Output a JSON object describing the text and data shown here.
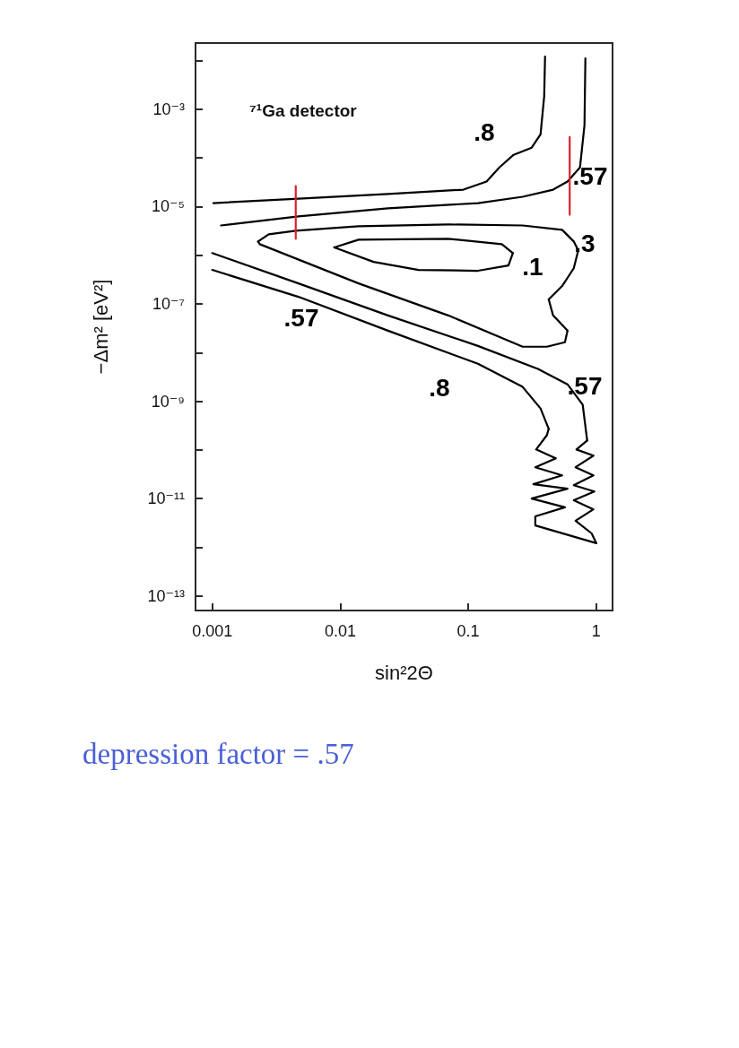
{
  "chart_data": {
    "type": "line",
    "log": "xy",
    "xlabel": "sin²2Θ",
    "ylabel": "−Δm² [eV²]",
    "xlim": [
      0.00074,
      1.34
    ],
    "xticks": [
      0.001,
      0.01,
      0.1,
      1
    ],
    "ylim": [
      5e-14,
      0.023
    ],
    "yticks": [
      {
        "value": 0.01,
        "label": null
      },
      {
        "value": 0.001,
        "label": "10⁻³"
      },
      {
        "value": 0.0001,
        "label": null
      },
      {
        "value": 1e-05,
        "label": "10⁻⁵"
      },
      {
        "value": 1e-06,
        "label": null
      },
      {
        "value": 1e-07,
        "label": "10⁻⁷"
      },
      {
        "value": 1e-08,
        "label": null
      },
      {
        "value": 1e-09,
        "label": "10⁻⁹"
      },
      {
        "value": 1e-10,
        "label": null
      },
      {
        "value": 1e-11,
        "label": "10⁻¹¹"
      },
      {
        "value": 1e-12,
        "label": null
      },
      {
        "value": 1e-13,
        "label": "10⁻¹³"
      }
    ],
    "series": [
      {
        "color": "#000000",
        "x": [
          0.00102,
          0.00471,
          0.0236,
          0.0916,
          0.139,
          0.175,
          0.226,
          0.313,
          0.367,
          0.392,
          0.398
        ],
        "values": [
          1.18e-05,
          1.46e-05,
          1.81e-05,
          2.23e-05,
          3.27e-05,
          6.4e-05,
          0.000116,
          0.000163,
          0.000306,
          0.00188,
          0.0121
        ]
      },
      {
        "color": "#000000",
        "x": [
          0.00117,
          0.00471,
          0.0236,
          0.119,
          0.266,
          0.46,
          0.596,
          0.746,
          0.809,
          0.822
        ],
        "values": [
          4.1e-06,
          6.3e-06,
          9.2e-06,
          1.18e-05,
          1.59e-05,
          2.23e-05,
          3.27e-05,
          6.4e-05,
          0.00047,
          0.0111
        ]
      },
      {
        "color": "#000000",
        "x": [
          0.00228,
          0.00276,
          0.00449,
          0.0139,
          0.0697,
          0.266,
          0.541,
          0.667,
          0.723
        ],
        "values": [
          1.92e-06,
          2.7e-06,
          3.2e-06,
          3.95e-06,
          4.3e-06,
          4.1e-06,
          3.33e-06,
          1.92e-06,
          1.26e-06
        ]
      },
      {
        "color": "#000000",
        "x": [
          0.425,
          0.541,
          0.667,
          0.723
        ],
        "values": [
          1.24e-07,
          2.33e-07,
          5.4e-07,
          1.26e-06
        ]
      },
      {
        "color": "#000000",
        "x": [
          0.425,
          0.46,
          0.596
        ],
        "values": [
          1.24e-07,
          5.8e-08,
          2.82e-08
        ]
      },
      {
        "color": "#000000",
        "x": [
          0.00228,
          0.00235,
          0.0139,
          0.0697,
          0.266,
          0.411,
          0.569,
          0.596
        ],
        "values": [
          1.92e-06,
          1.69e-06,
          2.64e-07,
          5.8e-08,
          1.32e-08,
          1.32e-08,
          1.63e-08,
          2.82e-08
        ]
      },
      {
        "color": "#000000",
        "x": [
          0.00898,
          0.0139,
          0.0697,
          0.183,
          0.223
        ],
        "values": [
          1.45e-06,
          2.09e-06,
          2.18e-06,
          1.69e-06,
          1.11e-06
        ]
      },
      {
        "color": "#000000",
        "x": [
          0.00898,
          0.0182,
          0.0409,
          0.119,
          0.206,
          0.223
        ],
        "values": [
          1.45e-06,
          7.3e-07,
          5e-07,
          4.8e-07,
          6.15e-07,
          1.11e-06
        ]
      },
      {
        "color": "#000000",
        "x": [
          0.001,
          0.00471,
          0.0236,
          0.119,
          0.35,
          0.596,
          0.783,
          0.849
        ],
        "values": [
          1.11e-06,
          2.64e-07,
          5.8e-08,
          1.37e-08,
          4.6e-09,
          2.23e-09,
          8.5e-10,
          1.56e-10
        ]
      },
      {
        "color": "#000000",
        "x": [
          0.849,
          0.7,
          0.95,
          0.689,
          0.95,
          0.667,
          0.966,
          0.667,
          0.95,
          0.689,
          0.92,
          1.0
        ],
        "values": [
          1.56e-10,
          1.02e-10,
          7.6e-11,
          4.4e-11,
          3e-11,
          1.88e-11,
          1.4e-11,
          9.2e-12,
          6e-12,
          3.5e-12,
          1.92e-12,
          1.21e-12
        ]
      },
      {
        "color": "#000000",
        "x": [
          0.001,
          0.00471,
          0.0236,
          0.119,
          0.266,
          0.367,
          0.425
        ],
        "values": [
          5e-07,
          1.4e-07,
          2.82e-08,
          5.9e-09,
          1.97e-09,
          7.1e-10,
          2.7e-10
        ]
      },
      {
        "color": "#000000",
        "x": [
          0.425,
          0.411,
          0.339,
          0.483,
          0.334,
          0.541,
          0.323,
          0.596,
          0.313,
          0.569,
          0.334,
          0.334,
          1.0
        ],
        "values": [
          2.7e-10,
          2e-10,
          1.02e-10,
          6.7e-11,
          4.4e-11,
          3e-11,
          1.97e-11,
          1.59e-11,
          1e-11,
          6.6e-12,
          4.3e-12,
          2.8e-12,
          1.21e-12
        ]
      },
      {
        "color": "#d9232e",
        "x": [
          0.00449,
          0.00449
        ],
        "values": [
          2.64e-05,
          2.18e-06
        ]
      },
      {
        "color": "#d9232e",
        "x": [
          0.62,
          0.62
        ],
        "values": [
          0.00027,
          6.8e-06
        ]
      }
    ],
    "annotations": [
      "⁷¹Ga detector",
      "depression factor = .57",
      ".8",
      ".57",
      ".3",
      ".1",
      ".57",
      ".8",
      ".57"
    ]
  }
}
